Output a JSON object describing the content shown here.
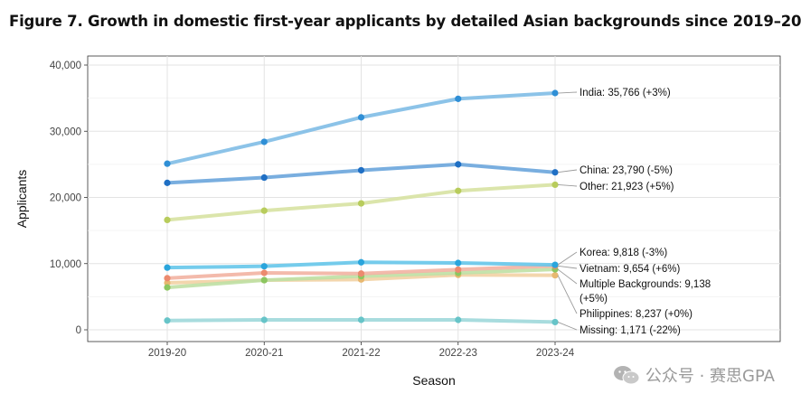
{
  "title": "Figure 7. Growth in domestic first-year applicants by detailed Asian backgrounds since 2019–20",
  "watermark": "公众号 · 赛思GPA",
  "chart_data": {
    "type": "line",
    "title": "Figure 7. Growth in domestic first-year applicants by detailed Asian backgrounds since 2019–20",
    "xlabel": "Season",
    "ylabel": "Applicants",
    "categories": [
      "2019-20",
      "2020-21",
      "2021-22",
      "2022-23",
      "2023-24"
    ],
    "ylim": [
      0,
      40000
    ],
    "yticks": [
      0,
      10000,
      20000,
      30000,
      40000
    ],
    "ytick_labels": [
      "0",
      "10,000",
      "20,000",
      "30,000",
      "40,000"
    ],
    "grid": true,
    "series": [
      {
        "name": "India",
        "color": "#7fbde6",
        "point_color": "#2f8fd6",
        "values": [
          25100,
          28400,
          32100,
          34900,
          35766
        ],
        "end_label": "India: 35,766 (+3%)"
      },
      {
        "name": "China",
        "color": "#6aa5dc",
        "point_color": "#1f6fc4",
        "values": [
          22200,
          23000,
          24100,
          25000,
          23790
        ],
        "end_label": "China: 23,790 (-5%)"
      },
      {
        "name": "Other",
        "color": "#d7e2a2",
        "point_color": "#b8cc5c",
        "values": [
          16600,
          18000,
          19100,
          21000,
          21923
        ],
        "end_label": "Other: 21,923 (+5%)"
      },
      {
        "name": "Korea",
        "color": "#66c6ea",
        "point_color": "#2aa5dc",
        "values": [
          9400,
          9600,
          10200,
          10100,
          9818
        ],
        "end_label": "Korea: 9,818 (-3%)"
      },
      {
        "name": "Vietnam",
        "color": "#f2b2a2",
        "point_color": "#ec8a6e",
        "values": [
          7800,
          8600,
          8500,
          9100,
          9654
        ],
        "end_label": "Vietnam: 9,654 (+6%)"
      },
      {
        "name": "Multiple Backgrounds",
        "color": "#bfe0a4",
        "point_color": "#8cc660",
        "values": [
          6400,
          7500,
          8100,
          8600,
          9138
        ],
        "end_label_lines": [
          "Multiple Backgrounds: 9,138",
          "(+5%)"
        ]
      },
      {
        "name": "Philippines",
        "color": "#f2d2a4",
        "point_color": "#e8b870",
        "values": [
          7100,
          7500,
          7600,
          8300,
          8237
        ],
        "end_label": "Philippines: 8,237 (+0%)"
      },
      {
        "name": "Missing",
        "color": "#9ed8da",
        "point_color": "#67c4c8",
        "values": [
          1400,
          1500,
          1500,
          1500,
          1171
        ],
        "end_label": "Missing: 1,171 (-22%)"
      }
    ]
  }
}
